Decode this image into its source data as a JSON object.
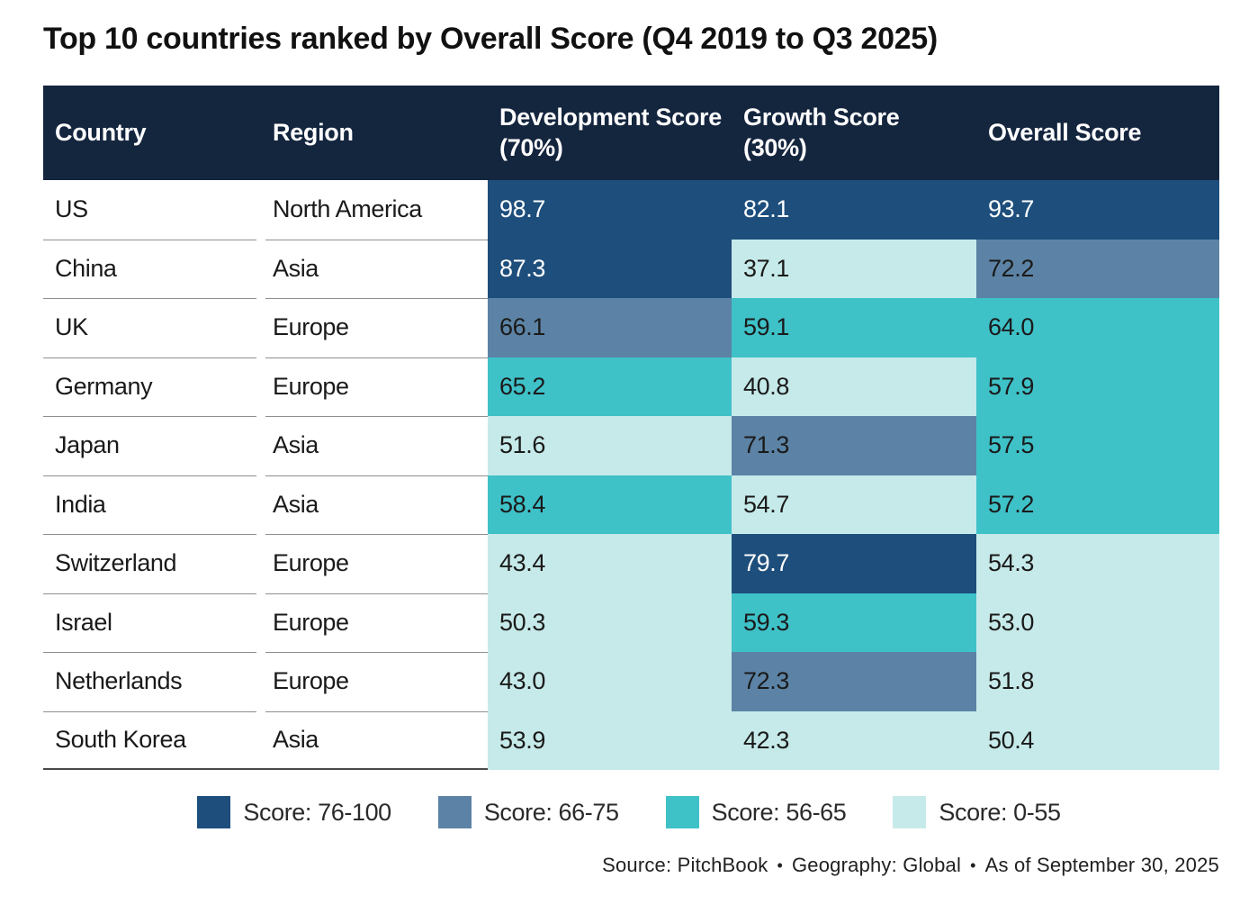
{
  "title": "Top 10 countries ranked by Overall Score (Q4 2019 to Q3 2025)",
  "theme": {
    "header_bg": "#14253e",
    "header_text": "#ffffff",
    "row_separator": "#8f8f8f",
    "bottom_border": "#4a4a4a"
  },
  "bands": [
    {
      "label": "Score: 76-100",
      "min": 76,
      "color": "#1d4e7c",
      "text_color": "#ffffff"
    },
    {
      "label": "Score: 66-75",
      "min": 66,
      "color": "#5c83a5",
      "text_color": "#1a1a1a"
    },
    {
      "label": "Score: 56-65",
      "min": 56,
      "color": "#3fc1c8",
      "text_color": "#1a1a1a"
    },
    {
      "label": "Score: 0-55",
      "min": 0,
      "color": "#c6eae9",
      "text_color": "#1a1a1a"
    }
  ],
  "table": {
    "columns": [
      "Country",
      "Region",
      "Development Score (70%)",
      "Growth Score (30%)",
      "Overall Score"
    ],
    "rows": [
      {
        "country": "US",
        "region": "North America",
        "scores": [
          "98.7",
          "82.1",
          "93.7"
        ]
      },
      {
        "country": "China",
        "region": "Asia",
        "scores": [
          "87.3",
          "37.1",
          "72.2"
        ]
      },
      {
        "country": "UK",
        "region": "Europe",
        "scores": [
          "66.1",
          "59.1",
          "64.0"
        ]
      },
      {
        "country": "Germany",
        "region": "Europe",
        "scores": [
          "65.2",
          "40.8",
          "57.9"
        ]
      },
      {
        "country": "Japan",
        "region": "Asia",
        "scores": [
          "51.6",
          "71.3",
          "57.5"
        ]
      },
      {
        "country": "India",
        "region": "Asia",
        "scores": [
          "58.4",
          "54.7",
          "57.2"
        ]
      },
      {
        "country": "Switzerland",
        "region": "Europe",
        "scores": [
          "43.4",
          "79.7",
          "54.3"
        ]
      },
      {
        "country": "Israel",
        "region": "Europe",
        "scores": [
          "50.3",
          "59.3",
          "53.0"
        ]
      },
      {
        "country": "Netherlands",
        "region": "Europe",
        "scores": [
          "43.0",
          "72.3",
          "51.8"
        ]
      },
      {
        "country": "South Korea",
        "region": "Asia",
        "scores": [
          "53.9",
          "42.3",
          "50.4"
        ]
      }
    ]
  },
  "footer": {
    "segments": [
      "Source: PitchBook",
      "Geography: Global",
      "As of September 30, 2025"
    ],
    "bullet": "•"
  },
  "chart_data": {
    "type": "heatmap",
    "title": "Top 10 countries ranked by Overall Score (Q4 2019 to Q3 2025)",
    "columns": [
      "Country",
      "Region",
      "Development Score (70%)",
      "Growth Score (30%)",
      "Overall Score"
    ],
    "rows": [
      [
        "US",
        "North America",
        98.7,
        82.1,
        93.7
      ],
      [
        "China",
        "Asia",
        87.3,
        37.1,
        72.2
      ],
      [
        "UK",
        "Europe",
        66.1,
        59.1,
        64.0
      ],
      [
        "Germany",
        "Europe",
        65.2,
        40.8,
        57.9
      ],
      [
        "Japan",
        "Asia",
        51.6,
        71.3,
        57.5
      ],
      [
        "India",
        "Asia",
        58.4,
        54.7,
        57.2
      ],
      [
        "Switzerland",
        "Europe",
        43.4,
        79.7,
        54.3
      ],
      [
        "Israel",
        "Europe",
        50.3,
        59.3,
        53.0
      ],
      [
        "Netherlands",
        "Europe",
        43.0,
        72.3,
        51.8
      ],
      [
        "South Korea",
        "Asia",
        53.9,
        42.3,
        50.4
      ]
    ],
    "legend": [
      "Score: 76-100",
      "Score: 66-75",
      "Score: 56-65",
      "Score: 0-55"
    ],
    "legend_position": "bottom-center",
    "color_scale": {
      "76-100": "#1d4e7c",
      "66-75": "#5c83a5",
      "56-65": "#3fc1c8",
      "0-55": "#c6eae9"
    },
    "source_note": "Source: PitchBook • Geography: Global • As of September 30, 2025"
  }
}
